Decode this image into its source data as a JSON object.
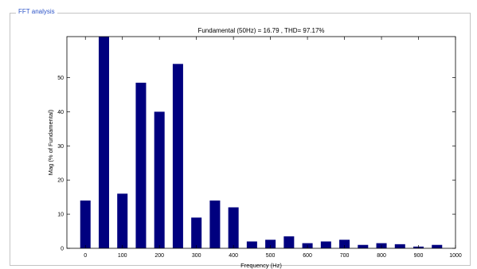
{
  "panel": {
    "title": "FFT analysis"
  },
  "chart_data": {
    "type": "bar",
    "title": "Fundamental (50Hz) = 16.79 , THD= 97.17%",
    "xlabel": "Frequency (Hz)",
    "ylabel": "Mag (% of Fundamental)",
    "xlim": [
      -50,
      1000
    ],
    "ylim": [
      0,
      62
    ],
    "xticks": [
      0,
      100,
      200,
      300,
      400,
      500,
      600,
      700,
      800,
      900,
      1000
    ],
    "yticks": [
      0,
      10,
      20,
      30,
      40,
      50
    ],
    "bar_color": "#00007f",
    "grid": false,
    "x": [
      0,
      50,
      100,
      150,
      200,
      250,
      300,
      350,
      400,
      450,
      500,
      550,
      600,
      650,
      700,
      750,
      800,
      850,
      900,
      950
    ],
    "values": [
      14,
      62,
      16,
      48.5,
      40,
      54,
      9,
      14,
      12,
      2,
      2.5,
      3.5,
      1.5,
      2,
      2.5,
      1,
      1.5,
      1.2,
      0.5,
      1
    ]
  }
}
